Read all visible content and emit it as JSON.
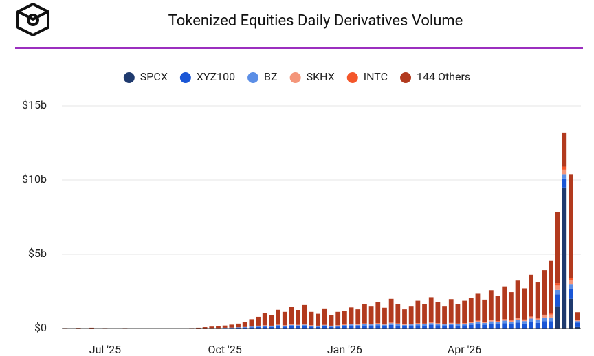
{
  "chart_data": {
    "type": "stacked_bar",
    "title": "Tokenized Equities Daily Derivatives Volume",
    "categories": [
      null,
      null,
      null,
      null,
      null,
      null,
      "Jul '25",
      null,
      null,
      null,
      null,
      null,
      null,
      null,
      null,
      null,
      null,
      null,
      null,
      null,
      null,
      null,
      null,
      null,
      "Oct '25",
      null,
      null,
      null,
      null,
      null,
      null,
      null,
      null,
      null,
      null,
      null,
      null,
      null,
      null,
      null,
      null,
      null,
      "Jan '26",
      null,
      null,
      null,
      null,
      null,
      null,
      null,
      null,
      null,
      null,
      null,
      null,
      null,
      null,
      null,
      null,
      null,
      "Apr '26",
      null,
      null,
      null,
      null,
      null,
      null,
      null,
      null,
      null,
      null,
      null,
      null,
      null,
      null,
      null,
      null,
      null
    ],
    "series": [
      {
        "name": "SPCX",
        "color": "#1f3a6e",
        "values": [
          0,
          0,
          0,
          0,
          0,
          0,
          0,
          0,
          0,
          0,
          0,
          0,
          0,
          0,
          0,
          0,
          0,
          0,
          0,
          0,
          0,
          0,
          0,
          0,
          0,
          0,
          0,
          0,
          0,
          0,
          0,
          0,
          0,
          0,
          0,
          0,
          0,
          0,
          0,
          0,
          0,
          0,
          0,
          0,
          0,
          0,
          0,
          0,
          0,
          0,
          0,
          0,
          0,
          0,
          0,
          0,
          0,
          0,
          0,
          0,
          0,
          0,
          0,
          0,
          0,
          0,
          0,
          0,
          0,
          0,
          0,
          0,
          0,
          0,
          1.5,
          9.5,
          2.0,
          0.1
        ]
      },
      {
        "name": "XYZ100",
        "color": "#1a56d6",
        "values": [
          0,
          0,
          0,
          0,
          0,
          0,
          0,
          0,
          0,
          0,
          0,
          0,
          0,
          0,
          0,
          0,
          0,
          0,
          0,
          0,
          0,
          0.01,
          0.02,
          0.02,
          0.03,
          0.04,
          0.05,
          0.06,
          0.08,
          0.1,
          0.12,
          0.1,
          0.15,
          0.12,
          0.15,
          0.14,
          0.16,
          0.12,
          0.1,
          0.14,
          0.1,
          0.12,
          0.15,
          0.18,
          0.16,
          0.2,
          0.18,
          0.22,
          0.17,
          0.24,
          0.2,
          0.16,
          0.18,
          0.22,
          0.2,
          0.25,
          0.21,
          0.18,
          0.23,
          0.2,
          0.22,
          0.25,
          0.3,
          0.25,
          0.32,
          0.28,
          0.35,
          0.3,
          0.4,
          0.33,
          0.45,
          0.38,
          0.5,
          0.5,
          0.8,
          0.6,
          0.7,
          0.3
        ]
      },
      {
        "name": "BZ",
        "color": "#5b8ee6",
        "values": [
          0,
          0,
          0,
          0,
          0,
          0,
          0,
          0,
          0,
          0,
          0,
          0,
          0,
          0,
          0,
          0,
          0,
          0,
          0,
          0,
          0,
          0,
          0.01,
          0.01,
          0.02,
          0.02,
          0.03,
          0.04,
          0.05,
          0.06,
          0.07,
          0.06,
          0.08,
          0.07,
          0.09,
          0.08,
          0.09,
          0.07,
          0.06,
          0.08,
          0.06,
          0.07,
          0.08,
          0.09,
          0.08,
          0.1,
          0.09,
          0.1,
          0.08,
          0.11,
          0.1,
          0.08,
          0.09,
          0.1,
          0.09,
          0.11,
          0.1,
          0.09,
          0.1,
          0.09,
          0.1,
          0.12,
          0.15,
          0.12,
          0.16,
          0.14,
          0.18,
          0.15,
          0.2,
          0.17,
          0.22,
          0.19,
          0.25,
          0.25,
          0.3,
          0.3,
          0.3,
          0.1
        ]
      },
      {
        "name": "SKHX",
        "color": "#f4967a",
        "values": [
          0,
          0,
          0,
          0,
          0,
          0,
          0,
          0,
          0,
          0,
          0,
          0,
          0,
          0,
          0,
          0,
          0,
          0,
          0,
          0,
          0,
          0,
          0,
          0,
          0,
          0,
          0,
          0,
          0,
          0.02,
          0.02,
          0.02,
          0.02,
          0.02,
          0.02,
          0.02,
          0.02,
          0.02,
          0.02,
          0.02,
          0.02,
          0.02,
          0.03,
          0.03,
          0.03,
          0.03,
          0.03,
          0.03,
          0.03,
          0.03,
          0.03,
          0.03,
          0.03,
          0.03,
          0.03,
          0.03,
          0.03,
          0.03,
          0.03,
          0.03,
          0.03,
          0.05,
          0.06,
          0.05,
          0.07,
          0.06,
          0.08,
          0.07,
          0.1,
          0.08,
          0.12,
          0.1,
          0.15,
          0.2,
          0.3,
          0.3,
          0.25,
          0.05
        ]
      },
      {
        "name": "INTC",
        "color": "#f4562a",
        "values": [
          0,
          0,
          0,
          0,
          0,
          0,
          0,
          0,
          0,
          0,
          0,
          0,
          0,
          0,
          0,
          0,
          0,
          0,
          0,
          0,
          0,
          0,
          0,
          0,
          0,
          0,
          0,
          0,
          0,
          0.01,
          0.01,
          0.01,
          0.01,
          0.01,
          0.01,
          0.01,
          0.01,
          0.01,
          0.01,
          0.01,
          0.01,
          0.01,
          0.02,
          0.02,
          0.02,
          0.02,
          0.02,
          0.02,
          0.02,
          0.02,
          0.02,
          0.02,
          0.02,
          0.02,
          0.02,
          0.02,
          0.02,
          0.02,
          0.02,
          0.02,
          0.02,
          0.03,
          0.03,
          0.03,
          0.03,
          0.03,
          0.03,
          0.03,
          0.03,
          0.03,
          0.03,
          0.03,
          0.03,
          0.1,
          0.15,
          0.2,
          0.15,
          0.05
        ]
      },
      {
        "name": "144 Others",
        "color": "#b23a1e",
        "values": [
          0.03,
          0.02,
          0.04,
          0.01,
          0.05,
          0.02,
          0.03,
          0.01,
          0.02,
          0.03,
          0.01,
          0.02,
          0.01,
          0.02,
          0.01,
          0.01,
          0.02,
          0.01,
          0.02,
          0.03,
          0.05,
          0.08,
          0.1,
          0.12,
          0.15,
          0.2,
          0.25,
          0.35,
          0.5,
          0.6,
          0.8,
          0.7,
          1.0,
          0.9,
          1.2,
          1.0,
          1.3,
          0.9,
          0.8,
          1.1,
          0.7,
          0.9,
          0.9,
          1.1,
          1.0,
          1.3,
          1.2,
          1.4,
          1.1,
          1.6,
          1.3,
          1.0,
          1.2,
          1.5,
          1.3,
          1.7,
          1.4,
          1.2,
          1.6,
          1.3,
          1.5,
          1.6,
          1.8,
          1.5,
          2.0,
          1.7,
          2.2,
          1.9,
          2.5,
          2.1,
          2.8,
          2.4,
          3.0,
          3.5,
          4.8,
          2.3,
          7.0,
          0.5
        ]
      }
    ],
    "ylim": [
      0,
      15
    ],
    "yticks": [
      {
        "value": 0,
        "label": "$0"
      },
      {
        "value": 5,
        "label": "$5b"
      },
      {
        "value": 10,
        "label": "$10b"
      },
      {
        "value": 15,
        "label": "$15b"
      }
    ],
    "grid": true
  }
}
